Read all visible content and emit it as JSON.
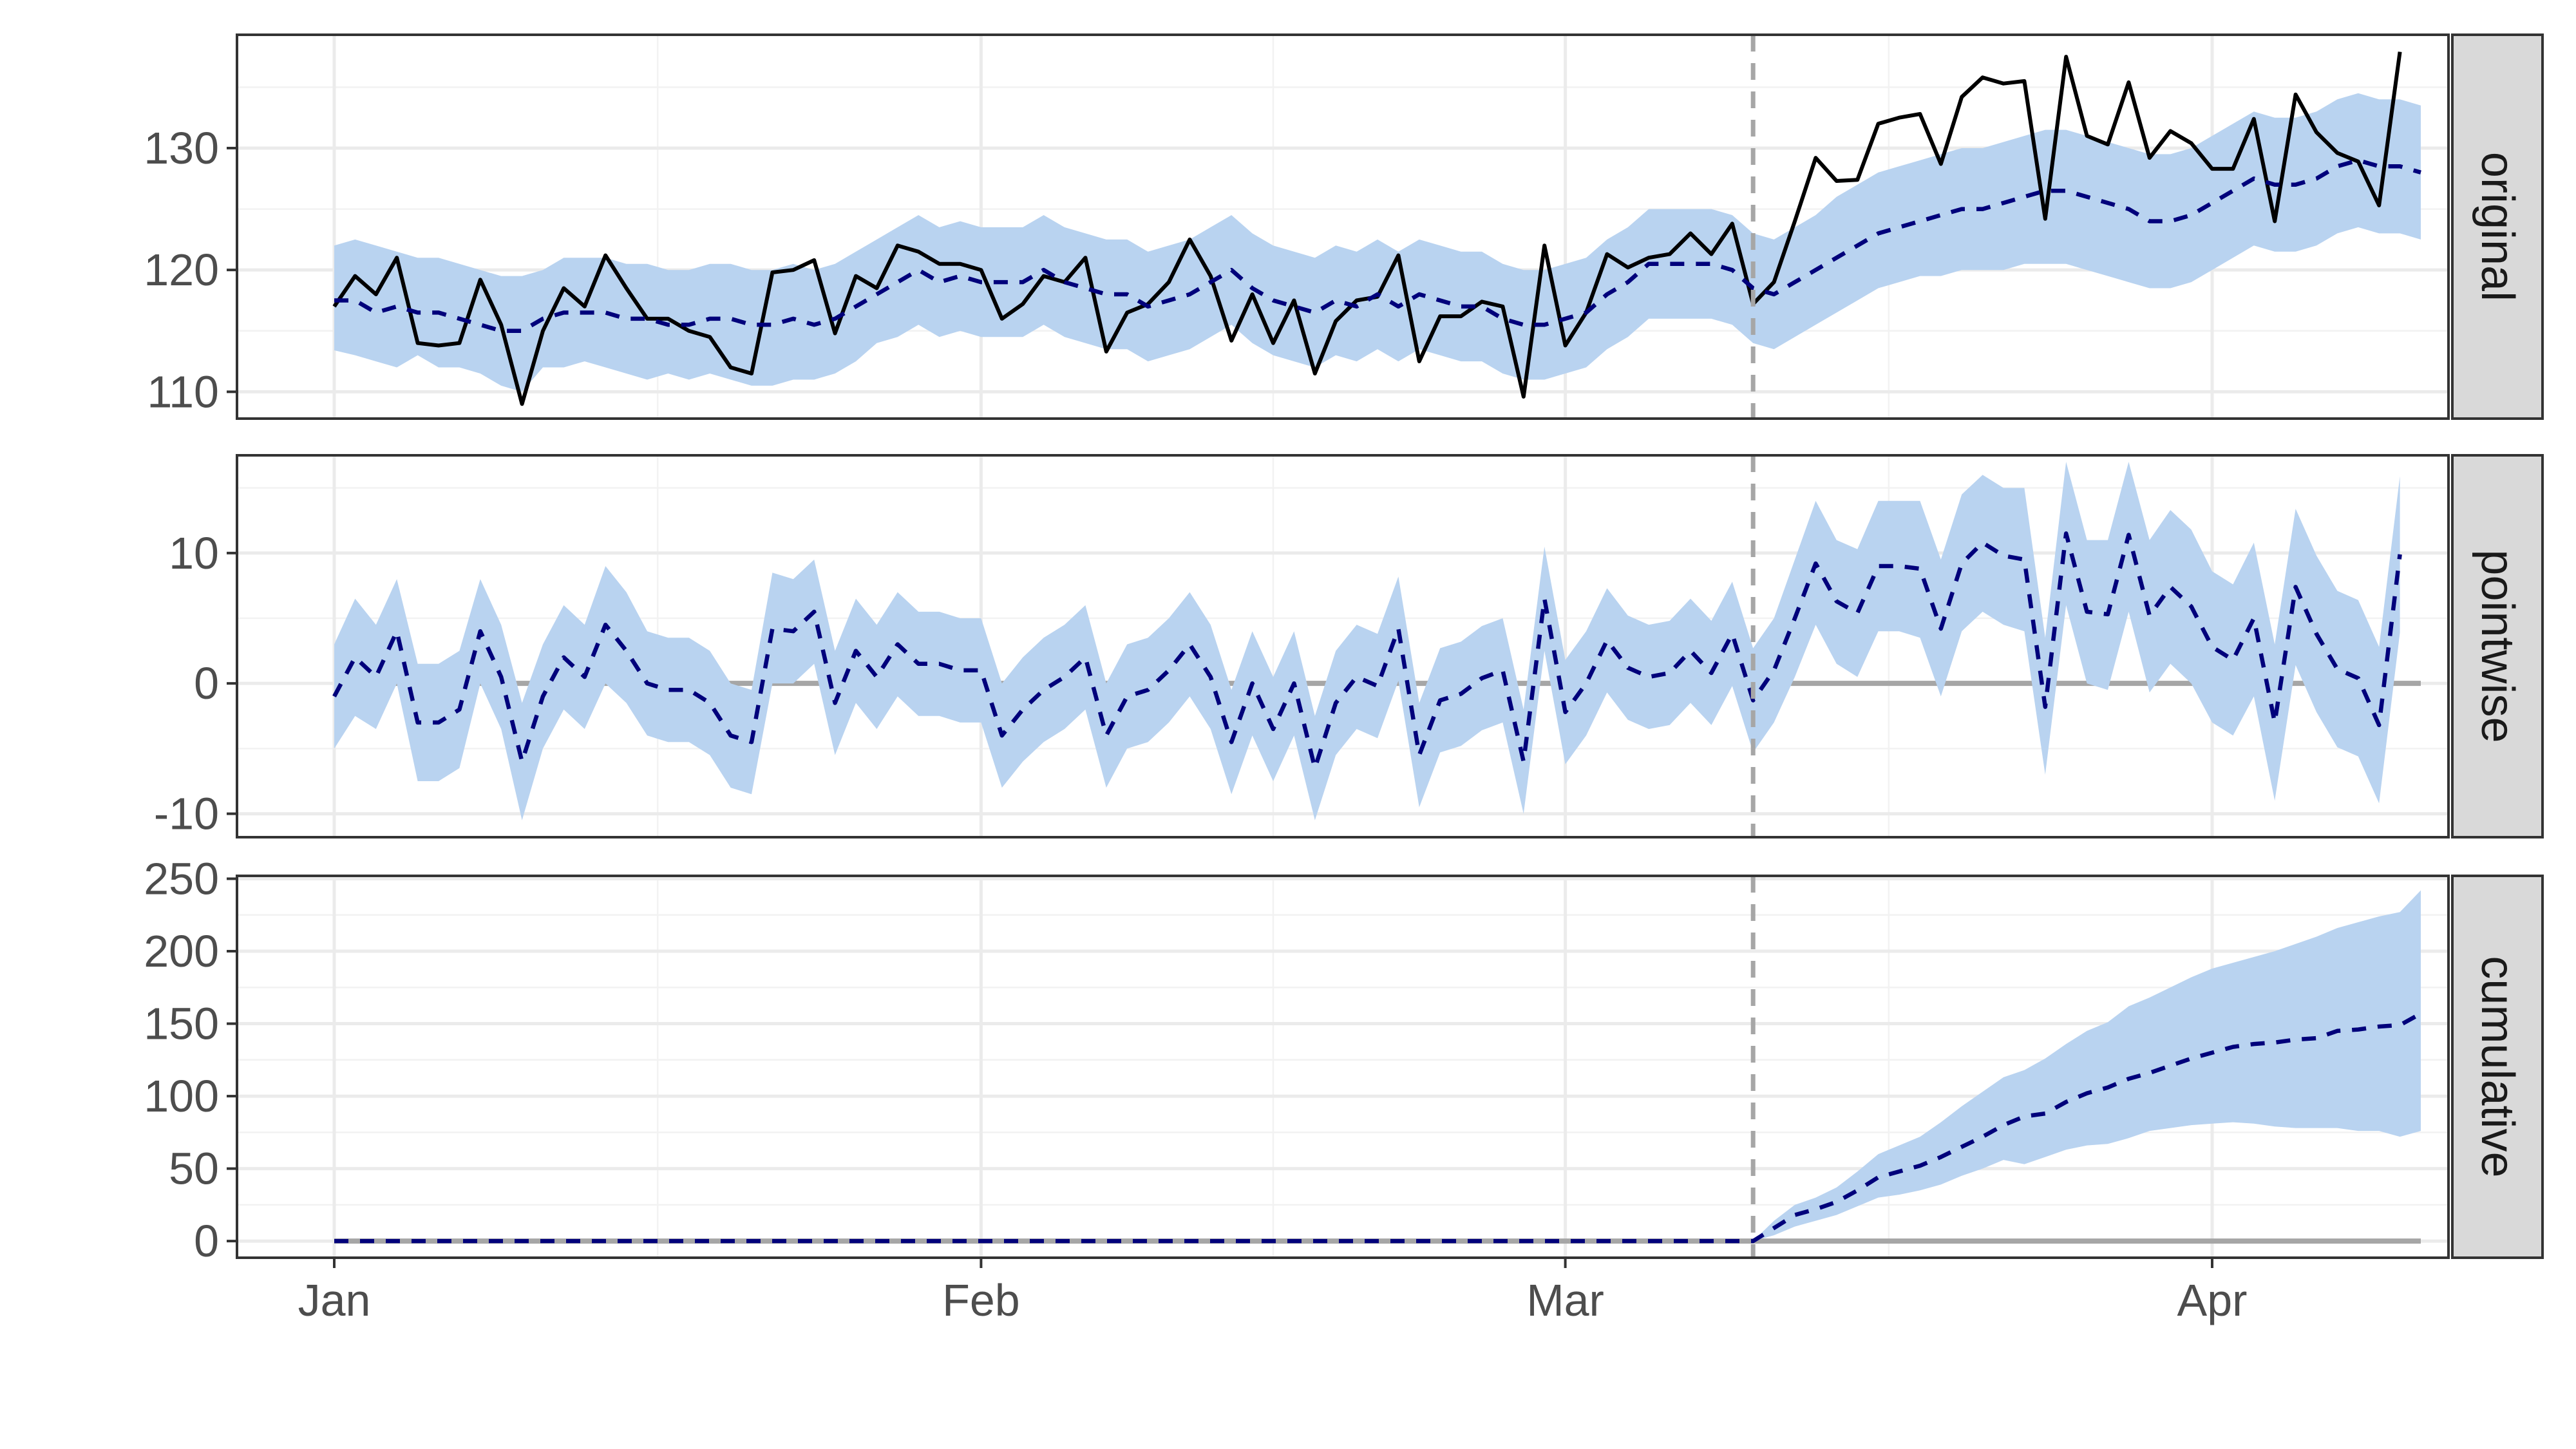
{
  "chart_data": {
    "type": "line",
    "x_axis": {
      "ticks": [
        "Jan",
        "Feb",
        "Mar",
        "Apr"
      ]
    },
    "intervention_index": 68,
    "panels": [
      {
        "strip_label": "original",
        "ylim": [
          107.8,
          139.3
        ],
        "yticks": [
          110,
          120,
          130
        ],
        "reference_line": null,
        "observed": [
          117,
          119.5,
          118,
          121,
          114,
          113.8,
          114,
          119.2,
          115.5,
          109,
          115,
          118.5,
          117,
          121.2,
          118.5,
          116,
          116,
          115,
          114.5,
          112,
          111.5,
          119.8,
          120,
          120.8,
          114.8,
          119.5,
          118.5,
          122,
          121.5,
          120.5,
          120.5,
          120,
          116,
          117.2,
          119.5,
          119,
          121,
          113.3,
          116.5,
          117.2,
          119,
          122.5,
          119.5,
          114.2,
          118,
          114,
          117.5,
          111.5,
          115.8,
          117.5,
          117.8,
          121.2,
          112.5,
          116.2,
          116.2,
          117.4,
          117,
          109.6,
          122,
          113.8,
          116.5,
          121.3,
          120.2,
          121,
          121.3,
          123,
          121.3,
          123.8,
          117.2,
          119,
          124,
          129.2,
          127.3,
          127.4,
          132,
          132.5,
          132.8,
          128.7,
          134.2,
          135.8,
          135.3,
          135.5,
          124.2,
          137.5,
          131,
          130.3,
          135.4,
          129.2,
          131.4,
          130.4,
          128.3,
          128.3,
          132.4,
          124,
          134.4,
          131.3,
          129.6,
          128.9,
          125.3,
          137.9
        ],
        "expected": [
          117.5,
          117.5,
          116.5,
          117,
          116.5,
          116.5,
          116,
          115.5,
          115,
          115,
          116,
          116.5,
          116.5,
          116.5,
          116,
          116,
          115.5,
          115.5,
          116,
          116,
          115.5,
          115.5,
          116,
          115.5,
          116,
          117,
          118,
          119,
          120,
          119,
          119.5,
          119,
          119,
          119,
          120,
          119,
          118.5,
          118,
          118,
          117,
          117.5,
          118,
          119,
          120,
          118.5,
          117.5,
          117,
          116.5,
          117.5,
          117,
          118,
          117,
          118,
          117.5,
          117,
          117,
          116,
          115.5,
          115.5,
          116,
          116.5,
          118,
          119,
          120.5,
          120.5,
          120.5,
          120.5,
          120,
          118.5,
          118,
          119,
          120,
          121,
          122,
          123,
          123.5,
          124,
          124.5,
          125,
          125,
          125.5,
          126,
          126.5,
          126.5,
          126,
          125.5,
          125,
          124,
          124,
          124.5,
          125.5,
          126.5,
          127.5,
          127,
          127,
          127.5,
          128.5,
          129,
          128.5,
          128.5,
          128
        ],
        "lower": [
          113.4,
          113,
          112.5,
          112,
          113,
          112,
          112,
          111.5,
          110.5,
          110,
          112,
          112,
          112.5,
          112,
          111.5,
          111,
          111.5,
          111,
          111.5,
          111,
          110.5,
          110.5,
          111,
          111,
          111.5,
          112.5,
          114,
          114.5,
          115.5,
          114.5,
          115,
          114.5,
          114.5,
          114.5,
          115.5,
          114.5,
          114,
          113.5,
          113.5,
          112.5,
          113,
          113.5,
          114.5,
          115.5,
          114,
          113,
          112.5,
          112,
          113,
          112.5,
          113.5,
          112.5,
          113.5,
          113,
          112.5,
          112.5,
          111.5,
          111,
          111,
          111.5,
          112,
          113.5,
          114.5,
          116,
          116,
          116,
          116,
          115.5,
          114,
          113.5,
          114.5,
          115.5,
          116.5,
          117.5,
          118.5,
          119,
          119.5,
          119.5,
          120,
          120,
          120,
          120.5,
          120.5,
          120.5,
          120,
          119.5,
          119,
          118.5,
          118.5,
          119,
          120,
          121,
          122,
          121.5,
          121.5,
          122,
          123,
          123.5,
          123,
          123,
          122.5
        ],
        "upper": [
          122,
          122.5,
          122,
          121.5,
          121,
          121,
          120.5,
          120,
          119.5,
          119.5,
          120,
          121,
          121,
          121,
          120.5,
          120.5,
          120,
          120,
          120.5,
          120.5,
          120,
          120,
          120.5,
          120,
          120.5,
          121.5,
          122.5,
          123.5,
          124.5,
          123.5,
          124,
          123.5,
          123.5,
          123.5,
          124.5,
          123.5,
          123,
          122.5,
          122.5,
          121.5,
          122,
          122.5,
          123.5,
          124.5,
          123,
          122,
          121.5,
          121,
          122,
          121.5,
          122.5,
          121.5,
          122.5,
          122,
          121.5,
          121.5,
          120.5,
          120,
          120,
          120.5,
          121,
          122.5,
          123.5,
          125,
          125,
          125,
          125,
          124.5,
          123,
          122.5,
          123.5,
          124.5,
          126,
          127,
          128,
          128.5,
          129,
          129.5,
          130,
          130,
          130.5,
          131,
          131.5,
          131.5,
          131,
          130.5,
          130,
          129.5,
          129.5,
          130,
          131,
          132,
          133,
          132.5,
          132.5,
          133,
          134,
          134.5,
          134,
          134,
          133.5
        ]
      },
      {
        "strip_label": "pointwise",
        "ylim": [
          -11.8,
          17.5
        ],
        "yticks": [
          -10,
          0,
          10
        ],
        "reference_line": 0,
        "expected": [
          -1,
          2,
          0.5,
          4,
          -3,
          -3,
          -2,
          4,
          0.5,
          -6,
          -1,
          2,
          0.5,
          4.5,
          2.5,
          0,
          -0.5,
          -0.5,
          -1.5,
          -4,
          -4.5,
          4.2,
          4,
          5.5,
          -1.5,
          2.5,
          0.5,
          3,
          1.5,
          1.5,
          1,
          1,
          -4,
          -2,
          -0.5,
          0.5,
          2,
          -4,
          -1,
          -0.5,
          1,
          3,
          0.5,
          -4.5,
          0,
          -3.5,
          0,
          -6.5,
          -1.5,
          0.5,
          -0.2,
          4.2,
          -5.5,
          -1.3,
          -0.8,
          0.4,
          1,
          -6,
          6.5,
          -2.2,
          0,
          3.3,
          1.2,
          0.5,
          0.8,
          2.5,
          0.8,
          3.8,
          -1.3,
          1,
          5,
          9.2,
          6.3,
          5.4,
          9,
          9,
          8.8,
          4.2,
          9.2,
          10.8,
          9.8,
          9.5,
          -1.8,
          11.5,
          5.5,
          5.3,
          11.4,
          5.2,
          7.4,
          5.9,
          2.8,
          1.8,
          5,
          -3,
          7.4,
          3.8,
          1.1,
          0.4,
          -3.2,
          9.9
        ],
        "lower": [
          -5,
          -2.5,
          -3.5,
          0,
          -7.5,
          -7.5,
          -6.5,
          0,
          -3.5,
          -10.5,
          -5,
          -2,
          -3.5,
          0,
          -1.5,
          -4,
          -4.5,
          -4.5,
          -5.5,
          -8,
          -8.5,
          0,
          0,
          1.5,
          -5.5,
          -1.5,
          -3.5,
          -1,
          -2.5,
          -2.5,
          -3,
          -3,
          -8,
          -6,
          -4.5,
          -3.5,
          -2,
          -8,
          -5,
          -4.5,
          -3,
          -1,
          -3.5,
          -8.5,
          -4,
          -7.5,
          -4,
          -10.5,
          -5.5,
          -3.5,
          -4.2,
          0.2,
          -9.5,
          -5.3,
          -4.8,
          -3.6,
          -3,
          -10,
          2.5,
          -6.2,
          -4,
          -0.7,
          -2.8,
          -3.5,
          -3.2,
          -1.5,
          -3.2,
          -0.2,
          -5.3,
          -3,
          0.5,
          4.5,
          1.5,
          0.5,
          4,
          4,
          3.5,
          -1,
          4,
          5.5,
          4.5,
          4,
          -7,
          6,
          0,
          -0.5,
          5.5,
          -0.7,
          1.5,
          0,
          -3,
          -4,
          -1,
          -9,
          1.4,
          -2.2,
          -4.9,
          -5.6,
          -9.2,
          3.9
        ],
        "upper": [
          3,
          6.5,
          4.5,
          8,
          1.5,
          1.5,
          2.5,
          8,
          4.5,
          -1.5,
          3,
          6,
          4.5,
          9,
          7,
          4,
          3.5,
          3.5,
          2.5,
          0,
          -0.5,
          8.5,
          8,
          9.5,
          2.5,
          6.5,
          4.5,
          7,
          5.5,
          5.5,
          5,
          5,
          0,
          2,
          3.5,
          4.5,
          6,
          0,
          3,
          3.5,
          5,
          7,
          4.5,
          -0.5,
          4,
          0.5,
          4,
          -2.5,
          2.5,
          4.5,
          3.8,
          8.2,
          -1.5,
          2.7,
          3.2,
          4.4,
          5,
          -2,
          10.5,
          1.8,
          4,
          7.3,
          5.2,
          4.5,
          4.8,
          6.5,
          4.8,
          7.8,
          2.7,
          5,
          9.5,
          14,
          11,
          10.3,
          14,
          14,
          14,
          9.5,
          14.5,
          16,
          15,
          15,
          3.5,
          17,
          11,
          11,
          17,
          11,
          13.3,
          11.8,
          8.6,
          7.6,
          10.8,
          3,
          13.4,
          9.8,
          7.1,
          6.4,
          2.8,
          15.9
        ]
      },
      {
        "strip_label": "cumulative",
        "ylim": [
          -11.5,
          252
        ],
        "yticks": [
          0,
          50,
          100,
          150,
          200,
          250
        ],
        "reference_line": 0,
        "expected": [
          0,
          0,
          0,
          0,
          0,
          0,
          0,
          0,
          0,
          0,
          0,
          0,
          0,
          0,
          0,
          0,
          0,
          0,
          0,
          0,
          0,
          0,
          0,
          0,
          0,
          0,
          0,
          0,
          0,
          0,
          0,
          0,
          0,
          0,
          0,
          0,
          0,
          0,
          0,
          0,
          0,
          0,
          0,
          0,
          0,
          0,
          0,
          0,
          0,
          0,
          0,
          0,
          0,
          0,
          0,
          0,
          0,
          0,
          0,
          0,
          0,
          0,
          0,
          0,
          0,
          0,
          0,
          0,
          0,
          9,
          18,
          22,
          27,
          35,
          44,
          48,
          52,
          58,
          65,
          72,
          80,
          86,
          88,
          96,
          102,
          106,
          112,
          116,
          121,
          126,
          130,
          134,
          136,
          137,
          139,
          140,
          145,
          146,
          148,
          149,
          157
        ],
        "lower": [
          0,
          0,
          0,
          0,
          0,
          0,
          0,
          0,
          0,
          0,
          0,
          0,
          0,
          0,
          0,
          0,
          0,
          0,
          0,
          0,
          0,
          0,
          0,
          0,
          0,
          0,
          0,
          0,
          0,
          0,
          0,
          0,
          0,
          0,
          0,
          0,
          0,
          0,
          0,
          0,
          0,
          0,
          0,
          0,
          0,
          0,
          0,
          0,
          0,
          0,
          0,
          0,
          0,
          0,
          0,
          0,
          0,
          0,
          0,
          0,
          0,
          0,
          0,
          0,
          0,
          0,
          0,
          0,
          0,
          4,
          10,
          14,
          18,
          24,
          30,
          32,
          35,
          39,
          45,
          50,
          56,
          53,
          58,
          63,
          66,
          67,
          71,
          76,
          78,
          80,
          81,
          82,
          81,
          79,
          78,
          78,
          78,
          76,
          76,
          72,
          76
        ],
        "upper": [
          0,
          0,
          0,
          0,
          0,
          0,
          0,
          0,
          0,
          0,
          0,
          0,
          0,
          0,
          0,
          0,
          0,
          0,
          0,
          0,
          0,
          0,
          0,
          0,
          0,
          0,
          0,
          0,
          0,
          0,
          0,
          0,
          0,
          0,
          0,
          0,
          0,
          0,
          0,
          0,
          0,
          0,
          0,
          0,
          0,
          0,
          0,
          0,
          0,
          0,
          0,
          0,
          0,
          0,
          0,
          0,
          0,
          0,
          0,
          0,
          0,
          0,
          0,
          0,
          0,
          0,
          0,
          0,
          0,
          14,
          25,
          30,
          37,
          48,
          60,
          66,
          72,
          82,
          93,
          103,
          113,
          118,
          126,
          136,
          145,
          151,
          162,
          168,
          175,
          182,
          188,
          192,
          196,
          200,
          205,
          210,
          216,
          220,
          224,
          227,
          242
        ]
      }
    ],
    "colors": {
      "band": "#b9d3f0",
      "expected": "#00007b",
      "observed": "#000000",
      "reference": "#a6a6a6",
      "intervention": "#a6a6a6",
      "strip_bg": "#d9d9d9"
    },
    "grid": true
  }
}
